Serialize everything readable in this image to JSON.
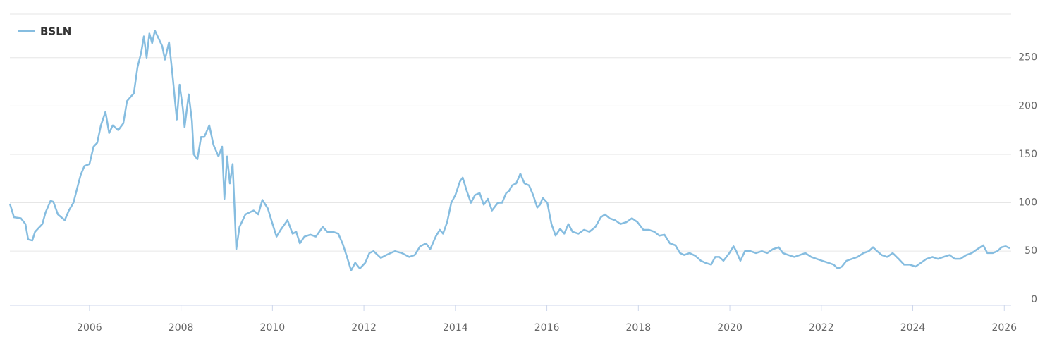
{
  "chart_data": {
    "type": "line",
    "x": [
      2004.26,
      2004.35,
      2004.5,
      2004.6,
      2004.66,
      2004.75,
      2004.81,
      2004.97,
      2005.04,
      2005.15,
      2005.21,
      2005.31,
      2005.46,
      2005.55,
      2005.65,
      2005.77,
      2005.81,
      2005.89,
      2006.0,
      2006.09,
      2006.17,
      2006.25,
      2006.35,
      2006.43,
      2006.51,
      2006.63,
      2006.74,
      2006.82,
      2006.91,
      2006.97,
      2007.05,
      2007.13,
      2007.19,
      2007.25,
      2007.31,
      2007.37,
      2007.43,
      2007.51,
      2007.59,
      2007.65,
      2007.74,
      2007.82,
      2007.91,
      2007.97,
      2008.04,
      2008.08,
      2008.17,
      2008.24,
      2008.28,
      2008.36,
      2008.44,
      2008.51,
      2008.62,
      2008.71,
      2008.82,
      2008.9,
      2008.95,
      2009.01,
      2009.07,
      2009.13,
      2009.21,
      2009.28,
      2009.41,
      2009.59,
      2009.69,
      2009.78,
      2009.9,
      2009.99,
      2010.09,
      2010.18,
      2010.27,
      2010.33,
      2010.44,
      2010.52,
      2010.6,
      2010.7,
      2010.83,
      2010.95,
      2011.1,
      2011.2,
      2011.32,
      2011.44,
      2011.54,
      2011.63,
      2011.72,
      2011.81,
      2011.91,
      2012.03,
      2012.12,
      2012.21,
      2012.37,
      2012.49,
      2012.68,
      2012.83,
      2012.99,
      2013.11,
      2013.23,
      2013.36,
      2013.45,
      2013.57,
      2013.66,
      2013.73,
      2013.82,
      2013.91,
      2014.0,
      2014.1,
      2014.16,
      2014.25,
      2014.34,
      2014.43,
      2014.53,
      2014.62,
      2014.71,
      2014.8,
      2014.93,
      2015.02,
      2015.11,
      2015.17,
      2015.24,
      2015.33,
      2015.42,
      2015.51,
      2015.61,
      2015.7,
      2015.79,
      2015.85,
      2015.91,
      2016.01,
      2016.1,
      2016.19,
      2016.29,
      2016.38,
      2016.47,
      2016.56,
      2016.69,
      2016.81,
      2016.93,
      2017.06,
      2017.18,
      2017.27,
      2017.37,
      2017.49,
      2017.61,
      2017.74,
      2017.86,
      2017.98,
      2018.11,
      2018.23,
      2018.35,
      2018.46,
      2018.57,
      2018.69,
      2018.81,
      2018.91,
      2019.0,
      2019.12,
      2019.25,
      2019.37,
      2019.46,
      2019.59,
      2019.68,
      2019.77,
      2019.86,
      2019.99,
      2020.08,
      2020.14,
      2020.23,
      2020.33,
      2020.45,
      2020.57,
      2020.7,
      2020.82,
      2020.94,
      2021.07,
      2021.16,
      2021.28,
      2021.41,
      2021.53,
      2021.65,
      2021.78,
      2021.9,
      2022.02,
      2022.15,
      2022.27,
      2022.36,
      2022.45,
      2022.55,
      2022.67,
      2022.79,
      2022.92,
      2023.04,
      2023.13,
      2023.22,
      2023.32,
      2023.44,
      2023.56,
      2023.69,
      2023.81,
      2023.93,
      2024.06,
      2024.18,
      2024.3,
      2024.43,
      2024.55,
      2024.67,
      2024.8,
      2024.92,
      2025.04,
      2025.17,
      2025.29,
      2025.41,
      2025.54,
      2025.63,
      2025.75,
      2025.85,
      2025.94,
      2026.03,
      2026.12
    ],
    "series": [
      {
        "name": "BSLN",
        "color": "#86bde0",
        "values": [
          99,
          85,
          84,
          78,
          62,
          61,
          70,
          78,
          90,
          102,
          101,
          88,
          82,
          92,
          100,
          122,
          129,
          138,
          140,
          158,
          162,
          180,
          194,
          172,
          180,
          175,
          182,
          205,
          210,
          213,
          240,
          255,
          272,
          250,
          275,
          265,
          278,
          270,
          262,
          248,
          266,
          230,
          186,
          222,
          198,
          178,
          212,
          185,
          150,
          145,
          168,
          168,
          180,
          160,
          148,
          158,
          104,
          148,
          120,
          140,
          52,
          75,
          88,
          92,
          88,
          103,
          94,
          80,
          65,
          72,
          78,
          82,
          68,
          70,
          58,
          65,
          67,
          65,
          75,
          70,
          70,
          68,
          57,
          44,
          30,
          38,
          32,
          38,
          48,
          50,
          43,
          46,
          50,
          48,
          44,
          46,
          55,
          58,
          52,
          65,
          72,
          68,
          80,
          100,
          108,
          122,
          126,
          112,
          100,
          108,
          110,
          98,
          104,
          92,
          100,
          100,
          110,
          112,
          118,
          120,
          130,
          120,
          118,
          108,
          95,
          98,
          105,
          100,
          78,
          66,
          73,
          68,
          78,
          70,
          68,
          72,
          70,
          75,
          85,
          88,
          84,
          82,
          78,
          80,
          84,
          80,
          72,
          72,
          70,
          66,
          67,
          58,
          56,
          48,
          46,
          48,
          45,
          40,
          38,
          36,
          44,
          44,
          40,
          48,
          55,
          50,
          40,
          50,
          50,
          48,
          50,
          48,
          52,
          54,
          48,
          46,
          44,
          46,
          48,
          44,
          42,
          40,
          38,
          36,
          32,
          34,
          40,
          42,
          44,
          48,
          50,
          54,
          50,
          46,
          44,
          48,
          42,
          36,
          36,
          34,
          38,
          42,
          44,
          42,
          44,
          46,
          42,
          42,
          46,
          48,
          52,
          56,
          48,
          48,
          50,
          54,
          55,
          53
        ]
      }
    ],
    "xlim": [
      2004.26,
      2026.15
    ],
    "xticks": [
      2006,
      2008,
      2010,
      2012,
      2014,
      2016,
      2018,
      2020,
      2022,
      2024,
      2026
    ],
    "ylim": [
      -6,
      295
    ],
    "yticks": [
      0,
      50,
      100,
      150,
      200,
      250
    ],
    "grid": true
  }
}
